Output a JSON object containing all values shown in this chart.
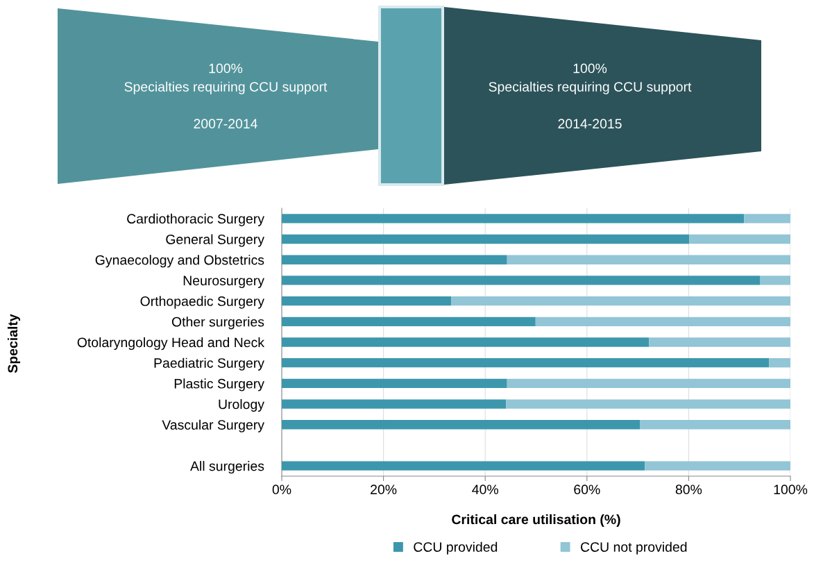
{
  "chart_data": [
    {
      "type": "other",
      "annotations": [
        "100%\nSpecialties requiring CCU support\n\n2007-2014",
        "100%\nSpecialties requiring CCU support\n\n2014-2015"
      ]
    },
    {
      "type": "bar",
      "orientation": "horizontal",
      "stacked": true,
      "xlabel": "Critical care utilisation (%)",
      "ylabel": "Specialty",
      "categories": [
        "Cardiothoracic Surgery",
        "General Surgery",
        "Gynaecology and Obstetrics",
        "Neurosurgery",
        "Orthopaedic Surgery",
        "Other surgeries",
        "Otolaryngology Head and Neck",
        "Paediatric Surgery",
        "Plastic Surgery",
        "Urology",
        "Vascular Surgery",
        null,
        "All surgeries"
      ],
      "series": [
        {
          "name": "CCU provided",
          "color": "#3d97ac",
          "values": [
            90.9,
            80.1,
            44.3,
            94.0,
            33.3,
            49.9,
            72.2,
            95.8,
            44.3,
            44.1,
            70.4,
            null,
            71.4
          ]
        },
        {
          "name": "CCU not provided",
          "color": "#92c5d6",
          "values": [
            9.1,
            19.9,
            55.7,
            6.0,
            66.7,
            50.1,
            27.8,
            4.2,
            55.7,
            55.9,
            29.6,
            null,
            28.6
          ]
        }
      ],
      "xlim": [
        0,
        100
      ],
      "xticks": [
        {
          "value": 0,
          "label": "0%"
        },
        {
          "value": 20,
          "label": "20%"
        },
        {
          "value": 40,
          "label": "40%"
        },
        {
          "value": 60,
          "label": "60%"
        },
        {
          "value": 80,
          "label": "80%"
        },
        {
          "value": 100,
          "label": "100%"
        }
      ],
      "grid": "x",
      "legend": "bottom"
    }
  ]
}
